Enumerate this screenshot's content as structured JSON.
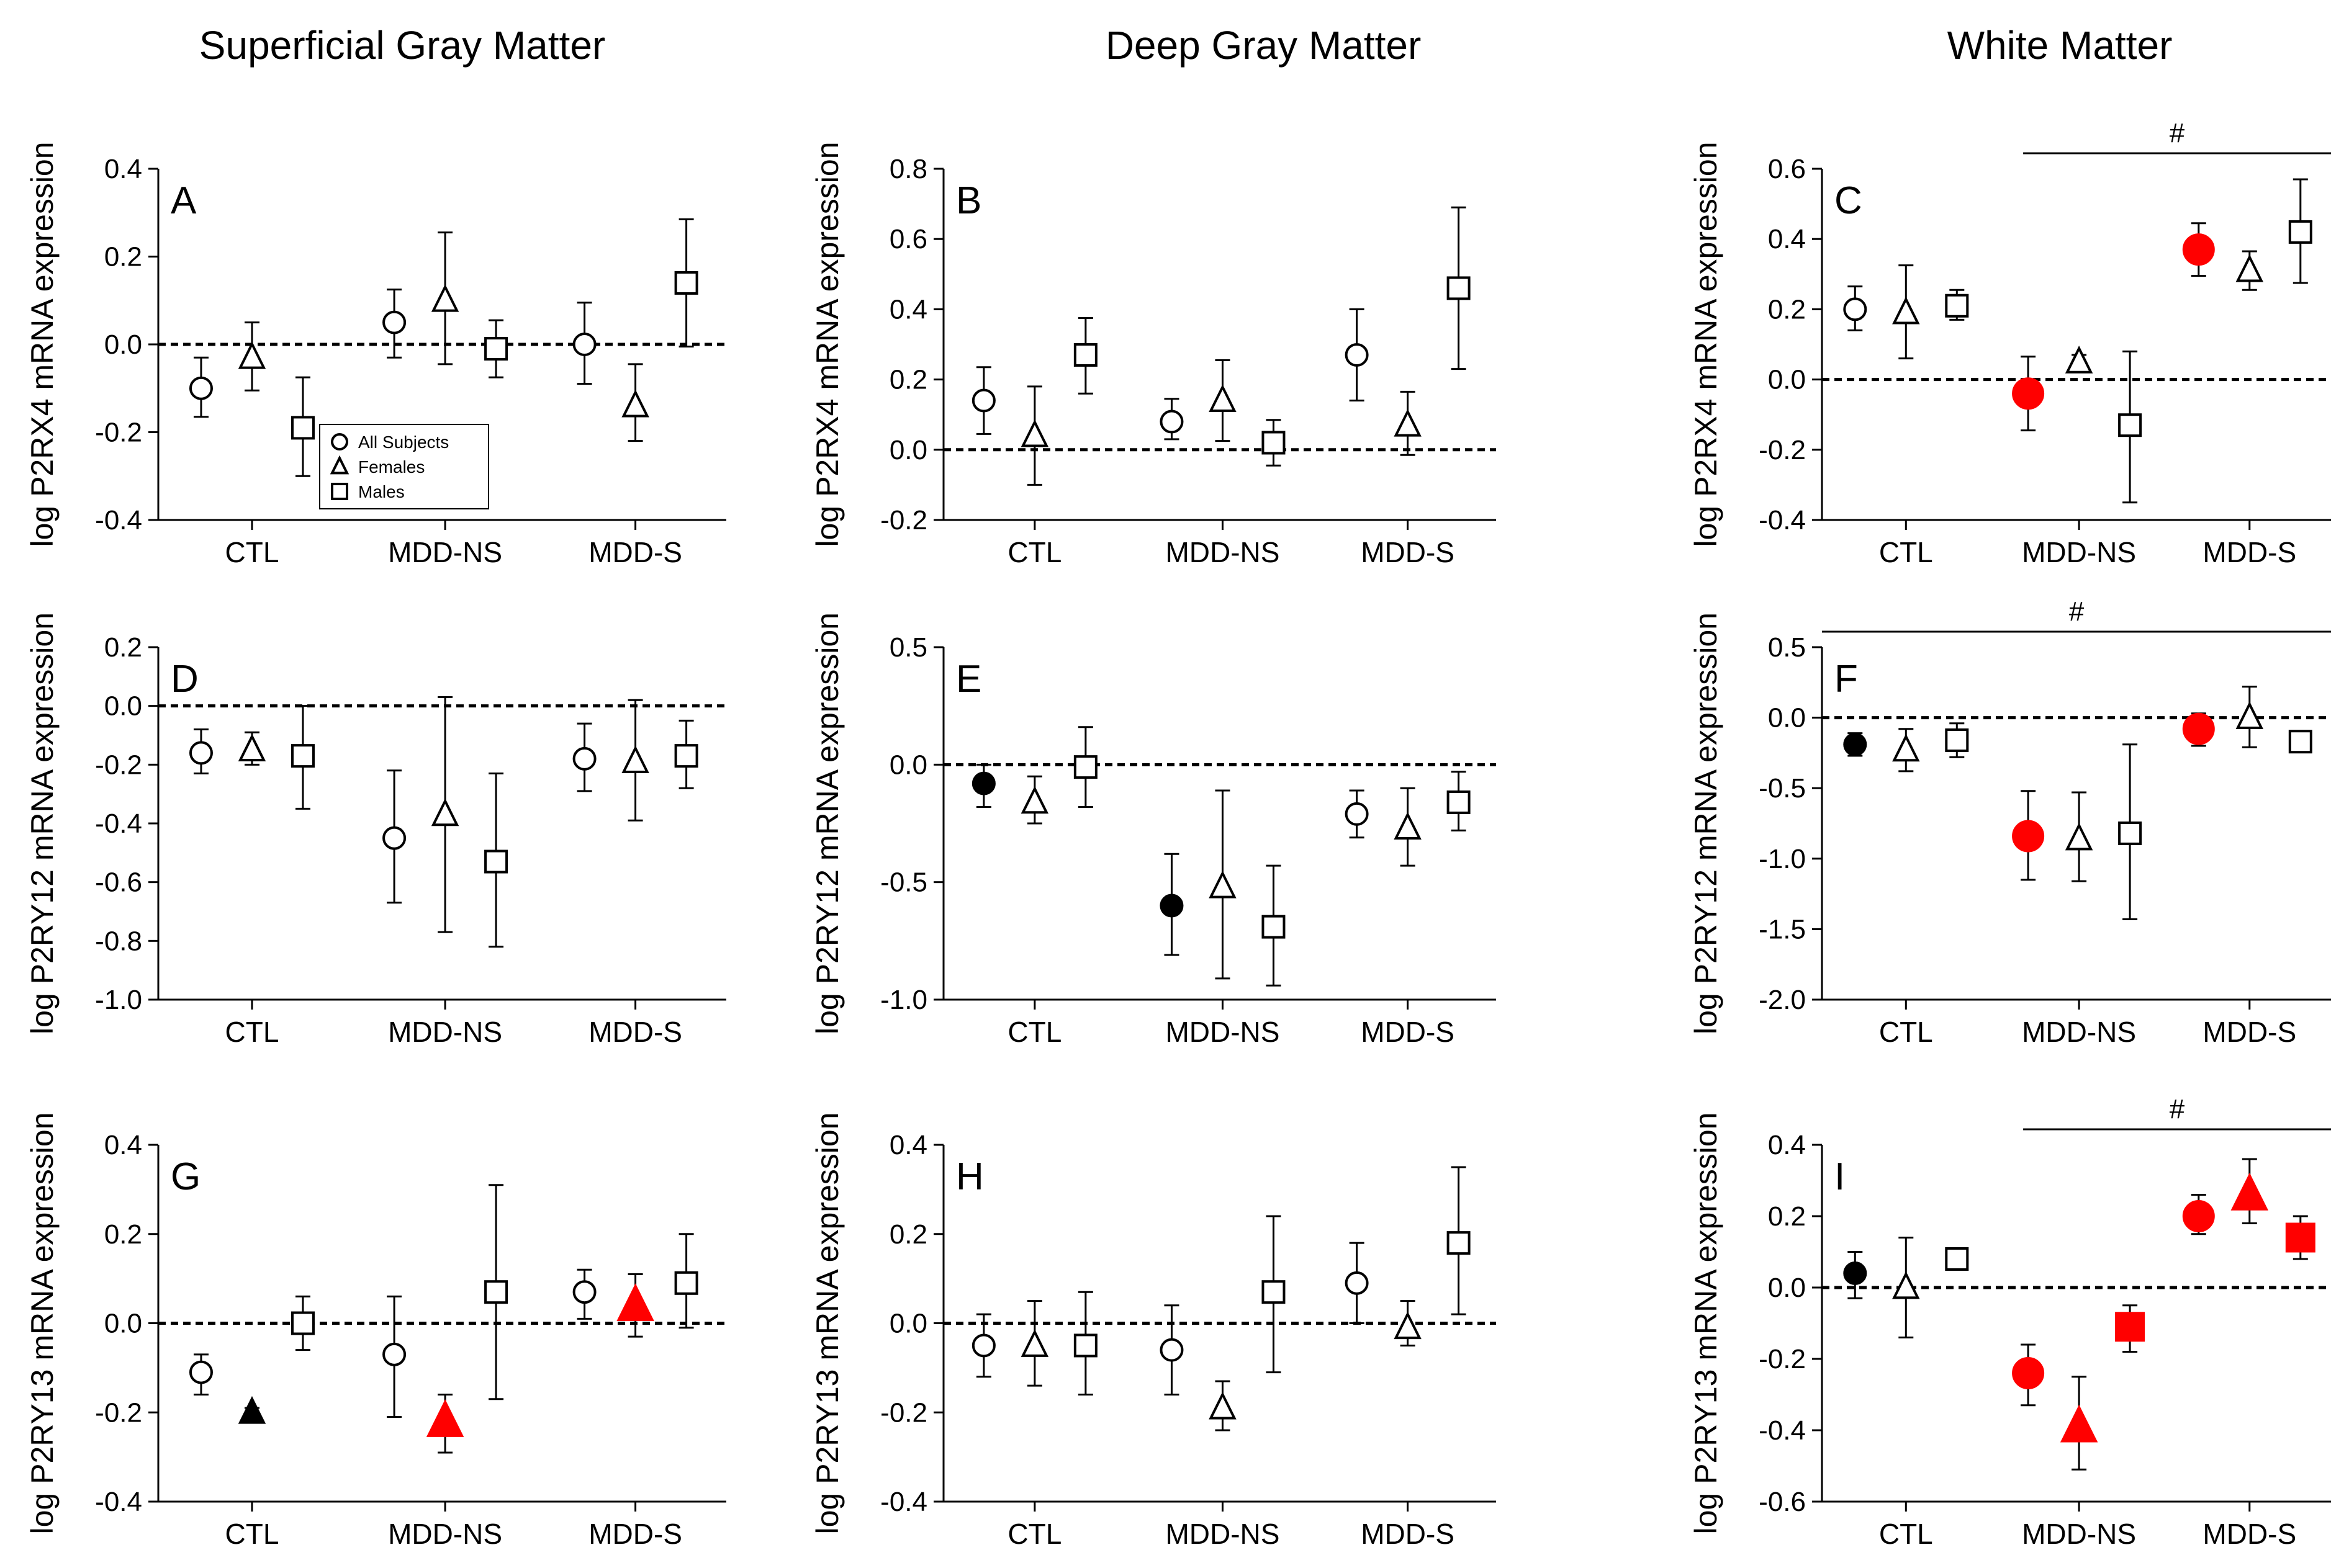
{
  "column_titles": [
    "Superficial Gray Matter",
    "Deep Gray Matter",
    "White Matter"
  ],
  "legend": {
    "entries": [
      {
        "symbol": "circle",
        "label": "All Subjects"
      },
      {
        "symbol": "triangle",
        "label": "Females"
      },
      {
        "symbol": "square",
        "label": "Males"
      }
    ]
  },
  "colors": {
    "significant": "#ff0000",
    "filled": "#000000",
    "open": "#ffffff",
    "stroke": "#000000"
  },
  "chart_data": [
    {
      "panel": "A",
      "type": "scatter",
      "title": "Superficial Gray Matter",
      "ylabel": "log P2RX4 mRNA expression",
      "ylim": [
        -0.4,
        0.4
      ],
      "yticks": [
        -0.4,
        -0.2,
        0.0,
        0.2,
        0.4
      ],
      "tick_labels": [
        "-0.4",
        "-0.2",
        "0.0",
        "0.2",
        "0.4"
      ],
      "categories": [
        "CTL",
        "MDD-NS",
        "MDD-S"
      ],
      "has_legend": true,
      "series": [
        {
          "name": "All Subjects",
          "marker": "circle",
          "values": [
            -0.1,
            0.05,
            0.0
          ],
          "err_low": [
            -0.165,
            -0.03,
            -0.09
          ],
          "err_high": [
            -0.03,
            0.125,
            0.095
          ],
          "fill": [
            "open",
            "open",
            "open"
          ]
        },
        {
          "name": "Females",
          "marker": "triangle",
          "values": [
            -0.03,
            0.1,
            -0.14
          ],
          "err_low": [
            -0.105,
            -0.045,
            -0.22
          ],
          "err_high": [
            0.05,
            0.255,
            -0.045
          ],
          "fill": [
            "open",
            "open",
            "open"
          ]
        },
        {
          "name": "Males",
          "marker": "square",
          "values": [
            -0.19,
            -0.01,
            0.14
          ],
          "err_low": [
            -0.3,
            -0.075,
            -0.005
          ],
          "err_high": [
            -0.075,
            0.055,
            0.285
          ],
          "fill": [
            "open",
            "open",
            "open"
          ]
        }
      ]
    },
    {
      "panel": "B",
      "type": "scatter",
      "title": "Deep Gray Matter",
      "ylabel": "log P2RX4 mRNA expression",
      "ylim": [
        -0.2,
        0.8
      ],
      "yticks": [
        -0.2,
        0.0,
        0.2,
        0.4,
        0.6,
        0.8
      ],
      "tick_labels": [
        "-0.2",
        "0.0",
        "0.2",
        "0.4",
        "0.6",
        "0.8"
      ],
      "categories": [
        "CTL",
        "MDD-NS",
        "MDD-S"
      ],
      "has_legend": false,
      "series": [
        {
          "name": "All Subjects",
          "marker": "circle",
          "values": [
            0.14,
            0.08,
            0.27
          ],
          "err_low": [
            0.045,
            0.03,
            0.14
          ],
          "err_high": [
            0.235,
            0.145,
            0.4
          ],
          "fill": [
            "open",
            "open",
            "open"
          ]
        },
        {
          "name": "Females",
          "marker": "triangle",
          "values": [
            0.04,
            0.14,
            0.07
          ],
          "err_low": [
            -0.1,
            0.025,
            -0.015
          ],
          "err_high": [
            0.18,
            0.255,
            0.165
          ],
          "fill": [
            "open",
            "open",
            "open"
          ]
        },
        {
          "name": "Males",
          "marker": "square",
          "values": [
            0.27,
            0.02,
            0.46
          ],
          "err_low": [
            0.16,
            -0.045,
            0.23
          ],
          "err_high": [
            0.375,
            0.085,
            0.69
          ],
          "fill": [
            "open",
            "open",
            "open"
          ]
        }
      ]
    },
    {
      "panel": "C",
      "type": "scatter",
      "title": "White Matter",
      "ylabel": "log P2RX4 mRNA expression",
      "ylim": [
        -0.4,
        0.6
      ],
      "yticks": [
        -0.4,
        -0.2,
        0.0,
        0.2,
        0.4,
        0.6
      ],
      "tick_labels": [
        "-0.4",
        "-0.2",
        "0.0",
        "0.2",
        "0.4",
        "0.6"
      ],
      "categories": [
        "CTL",
        "MDD-NS",
        "MDD-S"
      ],
      "has_legend": false,
      "significance": {
        "label": "#",
        "from": "MDD-NS",
        "to": "end"
      },
      "series": [
        {
          "name": "All Subjects",
          "marker": "circle",
          "values": [
            0.2,
            -0.04,
            0.37
          ],
          "err_low": [
            0.14,
            -0.145,
            0.295
          ],
          "err_high": [
            0.265,
            0.065,
            0.445
          ],
          "fill": [
            "open",
            "red",
            "red"
          ]
        },
        {
          "name": "Females",
          "marker": "triangle",
          "values": [
            0.19,
            0.05,
            0.31
          ],
          "err_low": [
            0.06,
            0.03,
            0.255
          ],
          "err_high": [
            0.325,
            0.07,
            0.365
          ],
          "fill": [
            "open",
            "open",
            "open"
          ]
        },
        {
          "name": "Males",
          "marker": "square",
          "values": [
            0.21,
            -0.13,
            0.42
          ],
          "err_low": [
            0.17,
            -0.35,
            0.275
          ],
          "err_high": [
            0.255,
            0.08,
            0.57
          ],
          "fill": [
            "open",
            "open",
            "open"
          ]
        }
      ]
    },
    {
      "panel": "D",
      "type": "scatter",
      "title": "Superficial Gray Matter",
      "ylabel": "log P2RY12 mRNA expression",
      "ylim": [
        -1.0,
        0.2
      ],
      "yticks": [
        -1.0,
        -0.8,
        -0.6,
        -0.4,
        -0.2,
        0.0,
        0.2
      ],
      "tick_labels": [
        "-1.0",
        "-0.8",
        "-0.6",
        "-0.4",
        "-0.2",
        "0.0",
        "0.2"
      ],
      "categories": [
        "CTL",
        "MDD-NS",
        "MDD-S"
      ],
      "has_legend": false,
      "series": [
        {
          "name": "All Subjects",
          "marker": "circle",
          "values": [
            -0.16,
            -0.45,
            -0.18
          ],
          "err_low": [
            -0.23,
            -0.67,
            -0.29
          ],
          "err_high": [
            -0.08,
            -0.22,
            -0.06
          ],
          "fill": [
            "open",
            "open",
            "open"
          ]
        },
        {
          "name": "Females",
          "marker": "triangle",
          "values": [
            -0.15,
            -0.37,
            -0.19
          ],
          "err_low": [
            -0.2,
            -0.77,
            -0.39
          ],
          "err_high": [
            -0.09,
            0.03,
            0.02
          ],
          "fill": [
            "open",
            "open",
            "open"
          ]
        },
        {
          "name": "Males",
          "marker": "square",
          "values": [
            -0.17,
            -0.53,
            -0.17
          ],
          "err_low": [
            -0.35,
            -0.82,
            -0.28
          ],
          "err_high": [
            0.0,
            -0.23,
            -0.05
          ],
          "fill": [
            "open",
            "open",
            "open"
          ]
        }
      ]
    },
    {
      "panel": "E",
      "type": "scatter",
      "title": "Deep Gray Matter",
      "ylabel": "log P2RY12 mRNA expression",
      "ylim": [
        -1.0,
        0.5
      ],
      "yticks": [
        -1.0,
        -0.5,
        0.0,
        0.5
      ],
      "tick_labels": [
        "-1.0",
        "-0.5",
        "0.0",
        "0.5"
      ],
      "categories": [
        "CTL",
        "MDD-NS",
        "MDD-S"
      ],
      "has_legend": false,
      "series": [
        {
          "name": "All Subjects",
          "marker": "circle",
          "values": [
            -0.08,
            -0.6,
            -0.21
          ],
          "err_low": [
            -0.18,
            -0.81,
            -0.31
          ],
          "err_high": [
            0.0,
            -0.38,
            -0.11
          ],
          "fill": [
            "black",
            "black",
            "open"
          ]
        },
        {
          "name": "Females",
          "marker": "triangle",
          "values": [
            -0.16,
            -0.52,
            -0.27
          ],
          "err_low": [
            -0.25,
            -0.91,
            -0.43
          ],
          "err_high": [
            -0.05,
            -0.11,
            -0.1
          ],
          "fill": [
            "open",
            "open",
            "open"
          ]
        },
        {
          "name": "Males",
          "marker": "square",
          "values": [
            -0.01,
            -0.69,
            -0.16
          ],
          "err_low": [
            -0.18,
            -0.94,
            -0.28
          ],
          "err_high": [
            0.16,
            -0.43,
            -0.03
          ],
          "fill": [
            "open",
            "open",
            "open"
          ]
        }
      ]
    },
    {
      "panel": "F",
      "type": "scatter",
      "title": "White Matter",
      "ylabel": "log P2RY12 mRNA expression",
      "ylim": [
        -2.0,
        0.5
      ],
      "yticks": [
        -2.0,
        -1.5,
        -1.0,
        -0.5,
        0.0,
        0.5
      ],
      "tick_labels": [
        "-2.0",
        "-1.5",
        "-1.0",
        "-0.5",
        "0.0",
        "0.5"
      ],
      "categories": [
        "CTL",
        "MDD-NS",
        "MDD-S"
      ],
      "has_legend": false,
      "significance": {
        "label": "#",
        "from": "start",
        "to": "end"
      },
      "series": [
        {
          "name": "All Subjects",
          "marker": "circle",
          "values": [
            -0.19,
            -0.84,
            -0.08
          ],
          "err_low": [
            -0.27,
            -1.15,
            -0.2
          ],
          "err_high": [
            -0.11,
            -0.52,
            0.03
          ],
          "fill": [
            "black",
            "red",
            "red"
          ]
        },
        {
          "name": "Females",
          "marker": "triangle",
          "values": [
            -0.23,
            -0.86,
            0.0
          ],
          "err_low": [
            -0.38,
            -1.16,
            -0.21
          ],
          "err_high": [
            -0.08,
            -0.53,
            0.22
          ],
          "fill": [
            "open",
            "open",
            "open"
          ]
        },
        {
          "name": "Males",
          "marker": "square",
          "values": [
            -0.16,
            -0.82,
            -0.17
          ],
          "err_low": [
            -0.28,
            -1.43,
            -0.24
          ],
          "err_high": [
            -0.04,
            -0.19,
            -0.1
          ],
          "fill": [
            "open",
            "open",
            "open"
          ]
        }
      ]
    },
    {
      "panel": "G",
      "type": "scatter",
      "title": "Superficial Gray Matter",
      "ylabel": "log P2RY13 mRNA expression",
      "ylim": [
        -0.4,
        0.4
      ],
      "yticks": [
        -0.4,
        -0.2,
        0.0,
        0.2,
        0.4
      ],
      "tick_labels": [
        "-0.4",
        "-0.2",
        "0.0",
        "0.2",
        "0.4"
      ],
      "categories": [
        "CTL",
        "MDD-NS",
        "MDD-S"
      ],
      "has_legend": false,
      "series": [
        {
          "name": "All Subjects",
          "marker": "circle",
          "values": [
            -0.11,
            -0.07,
            0.07
          ],
          "err_low": [
            -0.16,
            -0.21,
            0.01
          ],
          "err_high": [
            -0.07,
            0.06,
            0.12
          ],
          "fill": [
            "open",
            "open",
            "open"
          ]
        },
        {
          "name": "Females",
          "marker": "triangle",
          "values": [
            -0.2,
            -0.22,
            0.04
          ],
          "err_low": [
            -0.21,
            -0.29,
            -0.03
          ],
          "err_high": [
            -0.19,
            -0.16,
            0.11
          ],
          "fill": [
            "black",
            "red",
            "red"
          ]
        },
        {
          "name": "Males",
          "marker": "square",
          "values": [
            0.0,
            0.07,
            0.09
          ],
          "err_low": [
            -0.06,
            -0.17,
            -0.01
          ],
          "err_high": [
            0.06,
            0.31,
            0.2
          ],
          "fill": [
            "open",
            "open",
            "open"
          ]
        }
      ]
    },
    {
      "panel": "H",
      "type": "scatter",
      "title": "Deep Gray Matter",
      "ylabel": "log P2RY13 mRNA expression",
      "ylim": [
        -0.4,
        0.4
      ],
      "yticks": [
        -0.4,
        -0.2,
        0.0,
        0.2,
        0.4
      ],
      "tick_labels": [
        "-0.4",
        "-0.2",
        "0.0",
        "0.2",
        "0.4"
      ],
      "categories": [
        "CTL",
        "MDD-NS",
        "MDD-S"
      ],
      "has_legend": false,
      "series": [
        {
          "name": "All Subjects",
          "marker": "circle",
          "values": [
            -0.05,
            -0.06,
            0.09
          ],
          "err_low": [
            -0.12,
            -0.16,
            0.0
          ],
          "err_high": [
            0.02,
            0.04,
            0.18
          ],
          "fill": [
            "open",
            "open",
            "open"
          ]
        },
        {
          "name": "Females",
          "marker": "triangle",
          "values": [
            -0.05,
            -0.19,
            -0.01
          ],
          "err_low": [
            -0.14,
            -0.24,
            -0.05
          ],
          "err_high": [
            0.05,
            -0.13,
            0.05
          ],
          "fill": [
            "open",
            "open",
            "open"
          ]
        },
        {
          "name": "Males",
          "marker": "square",
          "values": [
            -0.05,
            0.07,
            0.18
          ],
          "err_low": [
            -0.16,
            -0.11,
            0.02
          ],
          "err_high": [
            0.07,
            0.24,
            0.35
          ],
          "fill": [
            "open",
            "open",
            "open"
          ]
        }
      ]
    },
    {
      "panel": "I",
      "type": "scatter",
      "title": "White Matter",
      "ylabel": "log P2RY13 mRNA expression",
      "ylim": [
        -0.6,
        0.4
      ],
      "yticks": [
        -0.6,
        -0.4,
        -0.2,
        0.0,
        0.2,
        0.4
      ],
      "tick_labels": [
        "-0.6",
        "-0.4",
        "-0.2",
        "0.0",
        "0.2",
        "0.4"
      ],
      "categories": [
        "CTL",
        "MDD-NS",
        "MDD-S"
      ],
      "has_legend": false,
      "significance": {
        "label": "#",
        "from": "MDD-NS",
        "to": "end"
      },
      "series": [
        {
          "name": "All Subjects",
          "marker": "circle",
          "values": [
            0.04,
            -0.24,
            0.2
          ],
          "err_low": [
            -0.03,
            -0.33,
            0.15
          ],
          "err_high": [
            0.1,
            -0.16,
            0.26
          ],
          "fill": [
            "black",
            "red",
            "red"
          ]
        },
        {
          "name": "Females",
          "marker": "triangle",
          "values": [
            0.0,
            -0.39,
            0.26
          ],
          "err_low": [
            -0.14,
            -0.51,
            0.18
          ],
          "err_high": [
            0.14,
            -0.25,
            0.36
          ],
          "fill": [
            "open",
            "red",
            "red"
          ]
        },
        {
          "name": "Males",
          "marker": "square",
          "values": [
            0.08,
            -0.11,
            0.14
          ],
          "err_low": [
            0.05,
            -0.18,
            0.08
          ],
          "err_high": [
            0.1,
            -0.05,
            0.2
          ],
          "fill": [
            "open",
            "red",
            "red"
          ]
        }
      ]
    }
  ]
}
